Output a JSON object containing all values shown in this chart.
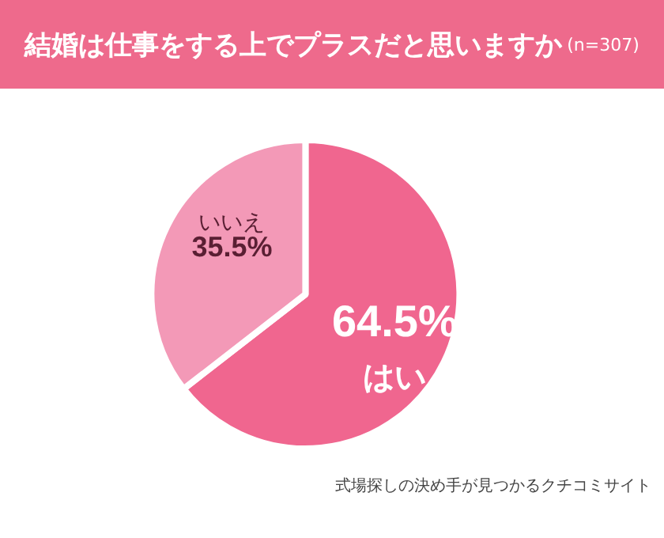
{
  "chart_data": {
    "type": "pie",
    "title": "結婚は仕事をする上でプラスだと思いますか",
    "subtitle": "(n=307)",
    "categories": [
      "はい",
      "いいえ"
    ],
    "values": [
      64.5,
      35.5
    ],
    "colors": [
      "#f0668f",
      "#f399b7"
    ],
    "value_labels": [
      "64.5%",
      "35.5%"
    ],
    "legend": false,
    "annotations": [
      "式場探しの決め手が見つかるクチコミサイト"
    ]
  }
}
